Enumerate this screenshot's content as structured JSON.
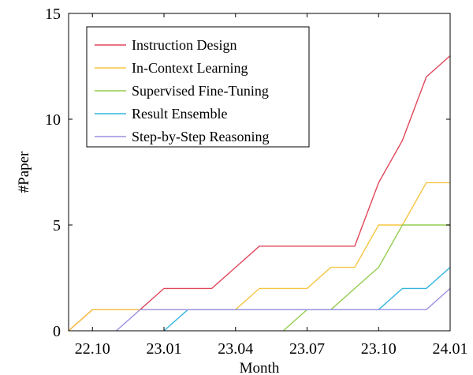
{
  "chart_data": {
    "type": "line",
    "xlabel": "Month",
    "ylabel": "#Paper",
    "x_ticks": [
      "22.10",
      "23.01",
      "23.04",
      "23.07",
      "23.10",
      "24.01"
    ],
    "x_categories": [
      "22.09",
      "22.10",
      "22.11",
      "22.12",
      "23.01",
      "23.02",
      "23.03",
      "23.04",
      "23.05",
      "23.06",
      "23.07",
      "23.08",
      "23.09",
      "23.10",
      "23.11",
      "23.12",
      "24.01"
    ],
    "y_ticks": [
      0,
      5,
      10,
      15
    ],
    "ylim": [
      0,
      15
    ],
    "grid": false,
    "legend_position": "top-left",
    "series": [
      {
        "name": "Instruction Design",
        "color": "#e0475a",
        "values": [
          0,
          1,
          1,
          1,
          2,
          2,
          2,
          3,
          4,
          4,
          4,
          4,
          4,
          7,
          9,
          12,
          13
        ]
      },
      {
        "name": "In-Context Learning",
        "color": "#f5c542",
        "values": [
          0,
          1,
          1,
          1,
          1,
          1,
          1,
          1,
          2,
          2,
          2,
          3,
          3,
          5,
          5,
          7,
          7
        ]
      },
      {
        "name": "Supervised Fine-Tuning",
        "color": "#93cc4e",
        "values": [
          null,
          null,
          null,
          null,
          null,
          null,
          null,
          null,
          null,
          0,
          1,
          1,
          2,
          3,
          5,
          5,
          5
        ]
      },
      {
        "name": "Result Ensemble",
        "color": "#32b5e0",
        "values": [
          null,
          null,
          null,
          null,
          0,
          1,
          1,
          1,
          1,
          1,
          1,
          1,
          1,
          1,
          2,
          2,
          3
        ]
      },
      {
        "name": "Step-by-Step Reasoning",
        "color": "#9d8fe0",
        "values": [
          null,
          null,
          0,
          1,
          1,
          1,
          1,
          1,
          1,
          1,
          1,
          1,
          1,
          1,
          1,
          1,
          2
        ]
      }
    ]
  }
}
